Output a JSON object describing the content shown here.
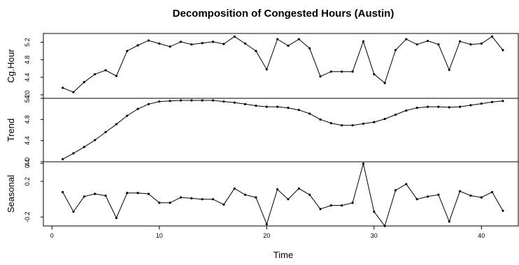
{
  "chart_data": {
    "type": "line",
    "title": "Decomposition of Congested Hours (Austin)",
    "xlabel": "Time",
    "x": [
      1,
      2,
      3,
      4,
      5,
      6,
      7,
      8,
      9,
      10,
      11,
      12,
      13,
      14,
      15,
      16,
      17,
      18,
      19,
      20,
      21,
      22,
      23,
      24,
      25,
      26,
      27,
      28,
      29,
      30,
      31,
      32,
      33,
      34,
      35,
      36,
      37,
      38,
      39,
      40,
      41,
      42
    ],
    "xlim": [
      -0.8,
      43.5
    ],
    "xticks": [
      0,
      10,
      20,
      30,
      40
    ],
    "xtick_labels": [
      "0",
      "10",
      "20",
      "30",
      "40"
    ],
    "panels": [
      {
        "name": "Cg.Hour",
        "ylabel": "Cg.Hour",
        "ylim": [
          3.92,
          5.4
        ],
        "yticks": [
          4.0,
          4.4,
          4.8,
          5.2
        ],
        "ytick_labels": [
          "4.0",
          "4.4",
          "4.8",
          "5.2"
        ],
        "values": [
          4.16,
          4.06,
          4.29,
          4.47,
          4.56,
          4.43,
          5.0,
          5.13,
          5.24,
          5.17,
          5.1,
          5.21,
          5.15,
          5.18,
          5.21,
          5.16,
          5.33,
          5.17,
          5.0,
          4.58,
          5.27,
          5.12,
          5.27,
          5.06,
          4.42,
          4.53,
          4.53,
          4.53,
          5.22,
          4.47,
          4.27,
          5.02,
          5.27,
          5.15,
          5.23,
          5.15,
          4.57,
          5.22,
          5.15,
          5.17,
          5.33,
          5.02
        ]
      },
      {
        "name": "Trend",
        "ylabel": "Trend",
        "ylim": [
          4.0,
          5.2
        ],
        "yticks": [
          4.0,
          4.4,
          4.8,
          5.2
        ],
        "ytick_labels": [
          "4.0",
          "4.4",
          "4.8",
          "5.2"
        ],
        "values": [
          4.05,
          4.16,
          4.28,
          4.41,
          4.56,
          4.71,
          4.87,
          5.0,
          5.09,
          5.14,
          5.15,
          5.16,
          5.16,
          5.16,
          5.16,
          5.14,
          5.12,
          5.09,
          5.06,
          5.04,
          5.04,
          5.02,
          4.98,
          4.91,
          4.8,
          4.73,
          4.69,
          4.69,
          4.72,
          4.75,
          4.81,
          4.89,
          4.97,
          5.02,
          5.04,
          5.04,
          5.03,
          5.04,
          5.07,
          5.1,
          5.13,
          5.15
        ]
      },
      {
        "name": "Seasonal",
        "ylabel": "Seasonal",
        "ylim": [
          -0.3,
          0.42
        ],
        "yticks": [
          -0.2,
          0.2,
          0.4
        ],
        "ytick_labels": [
          "-0.2",
          "0.2",
          "0.4"
        ],
        "values": [
          0.08,
          -0.14,
          0.03,
          0.06,
          0.04,
          -0.21,
          0.07,
          0.07,
          0.06,
          -0.04,
          -0.04,
          0.02,
          0.01,
          0.0,
          0.0,
          -0.06,
          0.12,
          0.05,
          0.02,
          -0.28,
          0.11,
          0.0,
          0.12,
          0.05,
          -0.11,
          -0.07,
          -0.07,
          -0.04,
          0.4,
          -0.14,
          -0.3,
          0.1,
          0.17,
          0.0,
          0.03,
          0.05,
          -0.25,
          0.09,
          0.04,
          0.02,
          0.08,
          -0.13
        ]
      }
    ]
  }
}
